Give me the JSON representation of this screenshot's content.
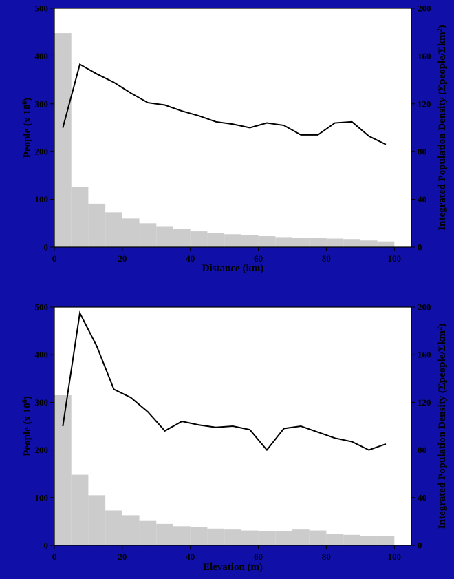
{
  "colors": {
    "page_background": "#1010a8",
    "plot_background": "#ffffff",
    "bar_fill": "#cccccc",
    "line_color": "#000000"
  },
  "chart_data": [
    {
      "type": "bar+line",
      "xlabel": "Distance (km)",
      "ylabel": "People (x 10⁶)",
      "y2label": "Integrated Population Density (Σpeople/Σkm²)",
      "xlim": [
        0,
        105
      ],
      "ylim": [
        0,
        500
      ],
      "y2lim": [
        0,
        200
      ],
      "xticks": [
        0,
        20,
        40,
        60,
        80,
        100
      ],
      "yticks": [
        0,
        100,
        200,
        300,
        400,
        500
      ],
      "y2ticks": [
        0,
        40,
        80,
        120,
        160,
        200
      ],
      "grid": false,
      "bars": {
        "bin_width": 5,
        "x_start": [
          0,
          5,
          10,
          15,
          20,
          25,
          30,
          35,
          40,
          45,
          50,
          55,
          60,
          65,
          70,
          75,
          80,
          85,
          90,
          95
        ],
        "values": [
          448,
          126,
          91,
          73,
          60,
          50,
          44,
          38,
          33,
          30,
          27,
          25,
          23,
          21,
          20,
          19,
          18,
          17,
          14,
          12
        ]
      },
      "line": {
        "axis": "right",
        "x": [
          2.5,
          7.5,
          12.5,
          17.5,
          22.5,
          27.5,
          32.5,
          37.5,
          42.5,
          47.5,
          52.5,
          57.5,
          62.5,
          67.5,
          72.5,
          77.5,
          82.5,
          87.5,
          92.5,
          97.5
        ],
        "values": [
          100,
          153,
          145,
          138,
          129,
          121,
          119,
          114,
          110,
          105,
          103,
          100,
          104,
          102,
          94,
          94,
          104,
          105,
          93,
          86
        ]
      }
    },
    {
      "type": "bar+line",
      "xlabel": "Elevation (m)",
      "ylabel": "People (x 10⁶)",
      "y2label": "Integrated Population Density (Σpeople/Σkm²)",
      "xlim": [
        0,
        105
      ],
      "ylim": [
        0,
        500
      ],
      "y2lim": [
        0,
        200
      ],
      "xticks": [
        0,
        20,
        40,
        60,
        80,
        100
      ],
      "yticks": [
        0,
        100,
        200,
        300,
        400,
        500
      ],
      "y2ticks": [
        0,
        40,
        80,
        120,
        160,
        200
      ],
      "grid": false,
      "bars": {
        "bin_width": 5,
        "x_start": [
          0,
          5,
          10,
          15,
          20,
          25,
          30,
          35,
          40,
          45,
          50,
          55,
          60,
          65,
          70,
          75,
          80,
          85,
          90,
          95
        ],
        "values": [
          315,
          148,
          105,
          73,
          63,
          51,
          45,
          40,
          38,
          35,
          33,
          31,
          30,
          29,
          33,
          31,
          24,
          22,
          20,
          19
        ]
      },
      "line": {
        "axis": "right",
        "x": [
          2.5,
          7.5,
          12.5,
          17.5,
          22.5,
          27.5,
          32.5,
          37.5,
          42.5,
          47.5,
          52.5,
          57.5,
          62.5,
          67.5,
          72.5,
          77.5,
          82.5,
          87.5,
          92.5,
          97.5
        ],
        "values": [
          100,
          195,
          167,
          131,
          124,
          112,
          96,
          104,
          101,
          99,
          100,
          97,
          80,
          98,
          100,
          95,
          90,
          87,
          80,
          85
        ]
      }
    }
  ]
}
